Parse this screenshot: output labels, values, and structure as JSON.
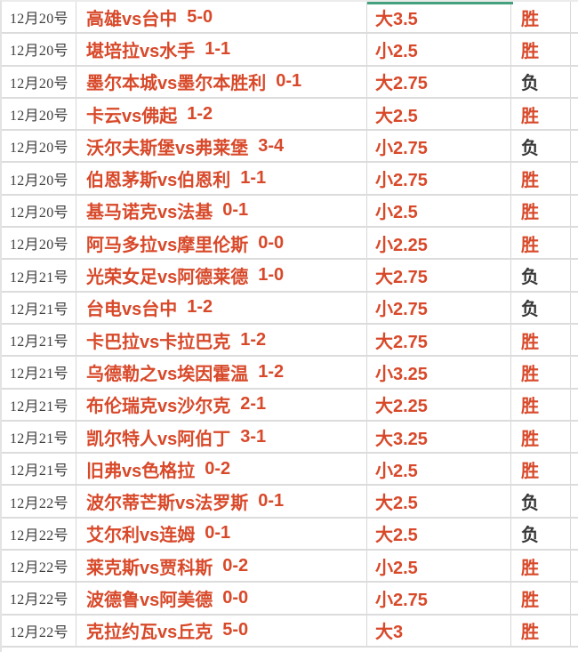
{
  "colors": {
    "accent_red": "#d8492a",
    "date_gray": "#404040",
    "lose_dark": "#383838",
    "grid_border": "#d7d7d7",
    "selection_green": "#44a17e",
    "background": "#ffffff"
  },
  "result_colors": {
    "胜": "#d8492a",
    "负": "#383838"
  },
  "table": {
    "rows": [
      {
        "date": "12月20号",
        "match": "高雄vs台中",
        "score": "5-0",
        "line": "大3.5",
        "result": "胜"
      },
      {
        "date": "12月20号",
        "match": "堪培拉vs水手",
        "score": "1-1",
        "line": "小2.5",
        "result": "胜"
      },
      {
        "date": "12月20号",
        "match": "墨尔本城vs墨尔本胜利",
        "score": "0-1",
        "line": "大2.75",
        "result": "负"
      },
      {
        "date": "12月20号",
        "match": "卡云vs佛起",
        "score": "1-2",
        "line": "大2.5",
        "result": "胜"
      },
      {
        "date": "12月20号",
        "match": "沃尔夫斯堡vs弗莱堡",
        "score": "3-4",
        "line": "小2.75",
        "result": "负"
      },
      {
        "date": "12月20号",
        "match": "伯恩茅斯vs伯恩利",
        "score": "1-1",
        "line": "小2.75",
        "result": "胜"
      },
      {
        "date": "12月20号",
        "match": "基马诺克vs法基",
        "score": "0-1",
        "line": "小2.5",
        "result": "胜"
      },
      {
        "date": "12月20号",
        "match": "阿马多拉vs摩里伦斯",
        "score": "0-0",
        "line": "小2.25",
        "result": "胜"
      },
      {
        "date": "12月21号",
        "match": "光荣女足vs阿德莱德",
        "score": "1-0",
        "line": "大2.75",
        "result": "负"
      },
      {
        "date": "12月21号",
        "match": "台电vs台中",
        "score": "1-2",
        "line": "小2.75",
        "result": "负"
      },
      {
        "date": "12月21号",
        "match": "卡巴拉vs卡拉巴克",
        "score": "1-2",
        "line": "大2.75",
        "result": "胜"
      },
      {
        "date": "12月21号",
        "match": "乌德勒之vs埃因霍温",
        "score": "1-2",
        "line": "小3.25",
        "result": "胜"
      },
      {
        "date": "12月21号",
        "match": "布伦瑞克vs沙尔克",
        "score": "2-1",
        "line": "大2.25",
        "result": "胜"
      },
      {
        "date": "12月21号",
        "match": "凯尔特人vs阿伯丁",
        "score": "3-1",
        "line": "大3.25",
        "result": "胜"
      },
      {
        "date": "12月21号",
        "match": "旧弗vs色格拉",
        "score": "0-2",
        "line": "小2.5",
        "result": "胜"
      },
      {
        "date": "12月22号",
        "match": "波尔蒂芒斯vs法罗斯",
        "score": "0-1",
        "line": "大2.5",
        "result": "负"
      },
      {
        "date": "12月22号",
        "match": "艾尔利vs连姆",
        "score": "0-1",
        "line": "大2.5",
        "result": "负"
      },
      {
        "date": "12月22号",
        "match": "莱克斯vs贾科斯",
        "score": "0-2",
        "line": "小2.5",
        "result": "胜"
      },
      {
        "date": "12月22号",
        "match": "波德鲁vs阿美德",
        "score": "0-0",
        "line": "小2.75",
        "result": "胜"
      },
      {
        "date": "12月22号",
        "match": "克拉约瓦vs丘克",
        "score": "5-0",
        "line": "大3",
        "result": "胜"
      }
    ]
  }
}
